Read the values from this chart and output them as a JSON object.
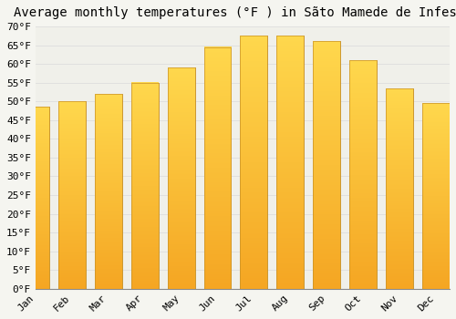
{
  "title": "Average monthly temperatures (°F ) in Sãto Mamede de Infesta",
  "months": [
    "Jan",
    "Feb",
    "Mar",
    "Apr",
    "May",
    "Jun",
    "Jul",
    "Aug",
    "Sep",
    "Oct",
    "Nov",
    "Dec"
  ],
  "values": [
    48.5,
    50.0,
    52.0,
    55.0,
    59.0,
    64.5,
    67.5,
    67.5,
    66.0,
    61.0,
    53.5,
    49.5
  ],
  "bar_color_top": "#FFD84D",
  "bar_color_bottom": "#F5A623",
  "bar_edge_color": "#C8922A",
  "background_color": "#F5F5F0",
  "plot_bg_color": "#F0F0EA",
  "grid_color": "#DDDDDD",
  "ylim": [
    0,
    70
  ],
  "yticks": [
    0,
    5,
    10,
    15,
    20,
    25,
    30,
    35,
    40,
    45,
    50,
    55,
    60,
    65,
    70
  ],
  "ylabel_suffix": "°F",
  "title_fontsize": 10,
  "tick_fontsize": 8,
  "font_family": "monospace"
}
